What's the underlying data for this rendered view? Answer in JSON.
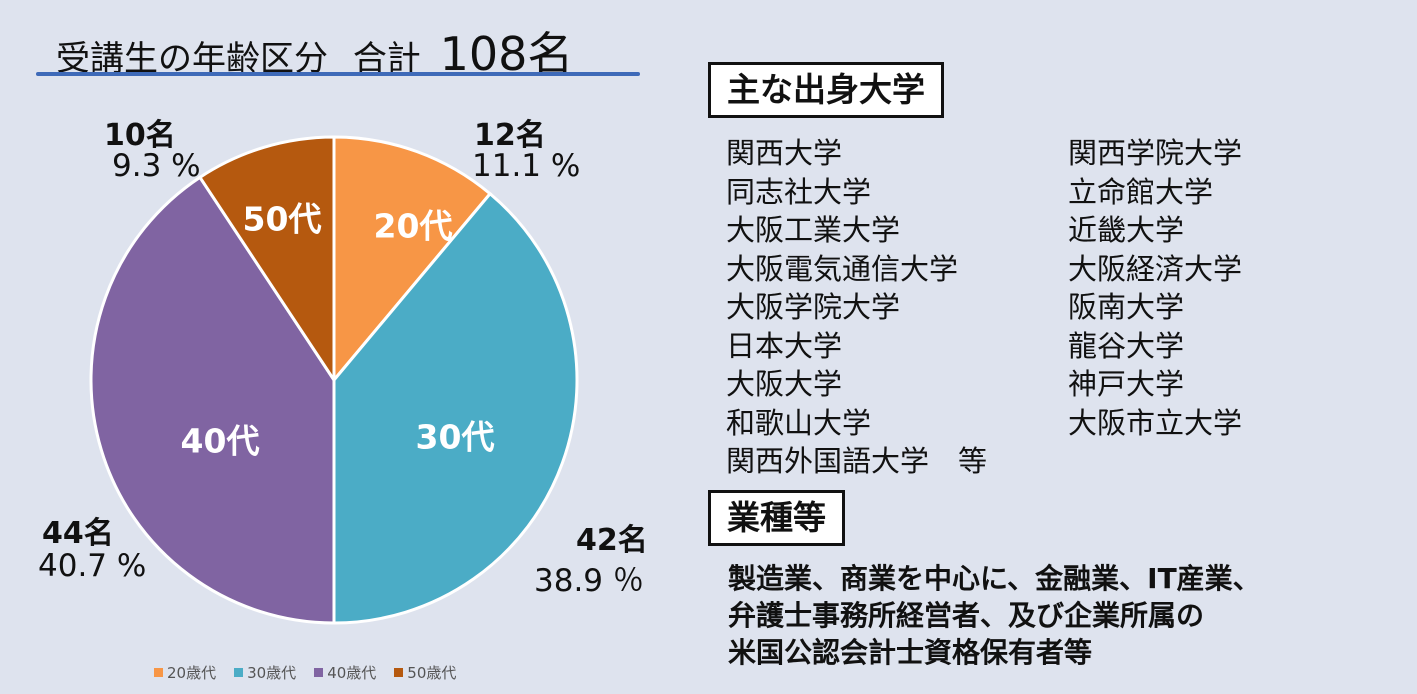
{
  "chart_title": "受講生の年齢区分",
  "total_label": "合計",
  "total_value": "108名",
  "chart_data": {
    "type": "pie",
    "title": "受講生の年齢区分 合計 108名",
    "slices": [
      {
        "label": "20代",
        "legend": "20歳代",
        "count": 12,
        "count_label": "12名",
        "percent": 11.1,
        "percent_label": "11.1 %",
        "color": "#f79646"
      },
      {
        "label": "30代",
        "legend": "30歳代",
        "count": 42,
        "count_label": "42名",
        "percent": 38.9,
        "percent_label": "38.9 ％",
        "color": "#4bacc6"
      },
      {
        "label": "40代",
        "legend": "40歳代",
        "count": 44,
        "count_label": "44名",
        "percent": 40.7,
        "percent_label": "40.7 %",
        "color": "#8064a2"
      },
      {
        "label": "50代",
        "legend": "50歳代",
        "count": 10,
        "count_label": "10名",
        "percent": 9.3,
        "percent_label": "9.3 %",
        "color": "#b5590f"
      }
    ],
    "legend_position": "bottom"
  },
  "universities": {
    "heading": "主な出身大学",
    "left": [
      "関西大学",
      "同志社大学",
      "大阪工業大学",
      "大阪電気通信大学",
      "大阪学院大学",
      "日本大学",
      "大阪大学",
      "和歌山大学",
      "関西外国語大学　等"
    ],
    "right": [
      "関西学院大学",
      "立命館大学",
      "近畿大学",
      "大阪経済大学",
      "阪南大学",
      "龍谷大学",
      "神戸大学",
      "大阪市立大学"
    ]
  },
  "industries": {
    "heading": "業種等",
    "lines": [
      "製造業、商業を中心に、金融業、IT産業、",
      "弁護士事務所経営者、及び企業所属の",
      "米国公認会計士資格保有者等"
    ]
  }
}
